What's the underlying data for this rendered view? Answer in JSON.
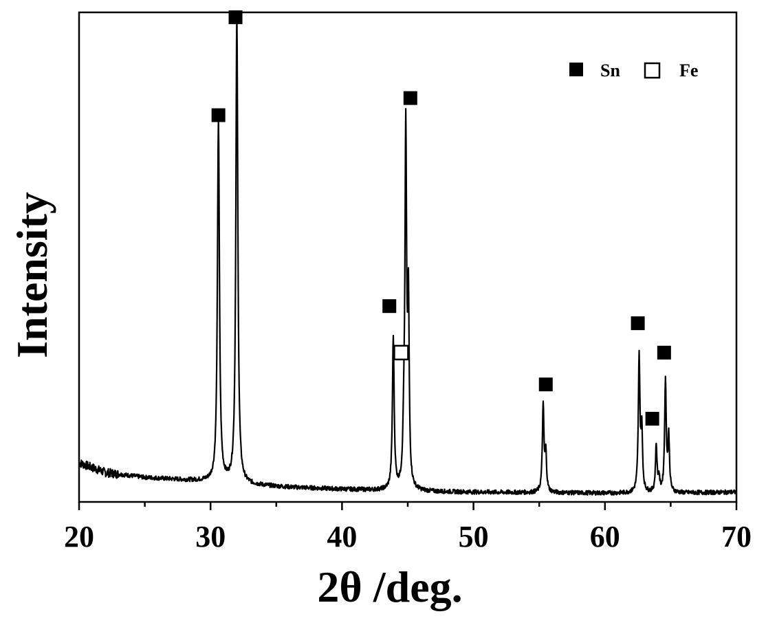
{
  "chart_data": {
    "type": "line",
    "xlabel": "2θ /deg.",
    "ylabel": "Intensity",
    "xlim": [
      20,
      70
    ],
    "ylim": [
      0,
      100
    ],
    "x_ticks": [
      "20",
      "30",
      "40",
      "50",
      "60",
      "70"
    ],
    "y_ticks_shown": false,
    "grid": false,
    "legend": {
      "placement": "top-right",
      "entries": [
        {
          "marker": "filled-square",
          "label": "Sn"
        },
        {
          "marker": "open-square",
          "label": "Fe"
        }
      ]
    },
    "baseline": [
      [
        20.0,
        8.0
      ],
      [
        22.0,
        6.0
      ],
      [
        25.0,
        5.0
      ],
      [
        28.0,
        4.5
      ],
      [
        30.0,
        4.2
      ],
      [
        33.0,
        3.5
      ],
      [
        36.0,
        3.0
      ],
      [
        40.0,
        2.6
      ],
      [
        44.0,
        2.3
      ],
      [
        47.0,
        2.1
      ],
      [
        50.0,
        2.0
      ],
      [
        55.0,
        1.9
      ],
      [
        60.0,
        1.8
      ],
      [
        65.0,
        1.8
      ],
      [
        70.0,
        2.0
      ]
    ],
    "peaks": [
      {
        "x": 30.6,
        "height": 74.0,
        "width": 0.18
      },
      {
        "x": 32.0,
        "height": 95.5,
        "width": 0.18
      },
      {
        "x": 43.9,
        "height": 31.0,
        "width": 0.16
      },
      {
        "x": 44.7,
        "height": 9.0,
        "width": 0.16
      },
      {
        "x": 44.85,
        "height": 71.5,
        "width": 0.15
      },
      {
        "x": 45.05,
        "height": 36.0,
        "width": 0.14
      },
      {
        "x": 55.3,
        "height": 17.5,
        "width": 0.15
      },
      {
        "x": 55.5,
        "height": 7.5,
        "width": 0.14
      },
      {
        "x": 62.6,
        "height": 27.5,
        "width": 0.15
      },
      {
        "x": 62.8,
        "height": 12.0,
        "width": 0.14
      },
      {
        "x": 63.9,
        "height": 9.5,
        "width": 0.14
      },
      {
        "x": 64.1,
        "height": 3.0,
        "width": 0.14
      },
      {
        "x": 64.6,
        "height": 22.5,
        "width": 0.15
      },
      {
        "x": 64.85,
        "height": 11.0,
        "width": 0.14
      }
    ],
    "markers": [
      {
        "x": 30.6,
        "y": 79.0,
        "phase": "Sn"
      },
      {
        "x": 31.9,
        "y": 99.0,
        "phase": "Sn"
      },
      {
        "x": 43.6,
        "y": 40.0,
        "phase": "Sn"
      },
      {
        "x": 44.5,
        "y": 30.5,
        "phase": "Fe"
      },
      {
        "x": 45.2,
        "y": 82.5,
        "phase": "Sn"
      },
      {
        "x": 55.5,
        "y": 24.0,
        "phase": "Sn"
      },
      {
        "x": 62.5,
        "y": 36.5,
        "phase": "Sn"
      },
      {
        "x": 63.6,
        "y": 17.0,
        "phase": "Sn"
      },
      {
        "x": 64.5,
        "y": 30.5,
        "phase": "Sn"
      }
    ],
    "colors": {
      "line": "#000000",
      "marker": "#000000",
      "background": "#ffffff"
    }
  }
}
